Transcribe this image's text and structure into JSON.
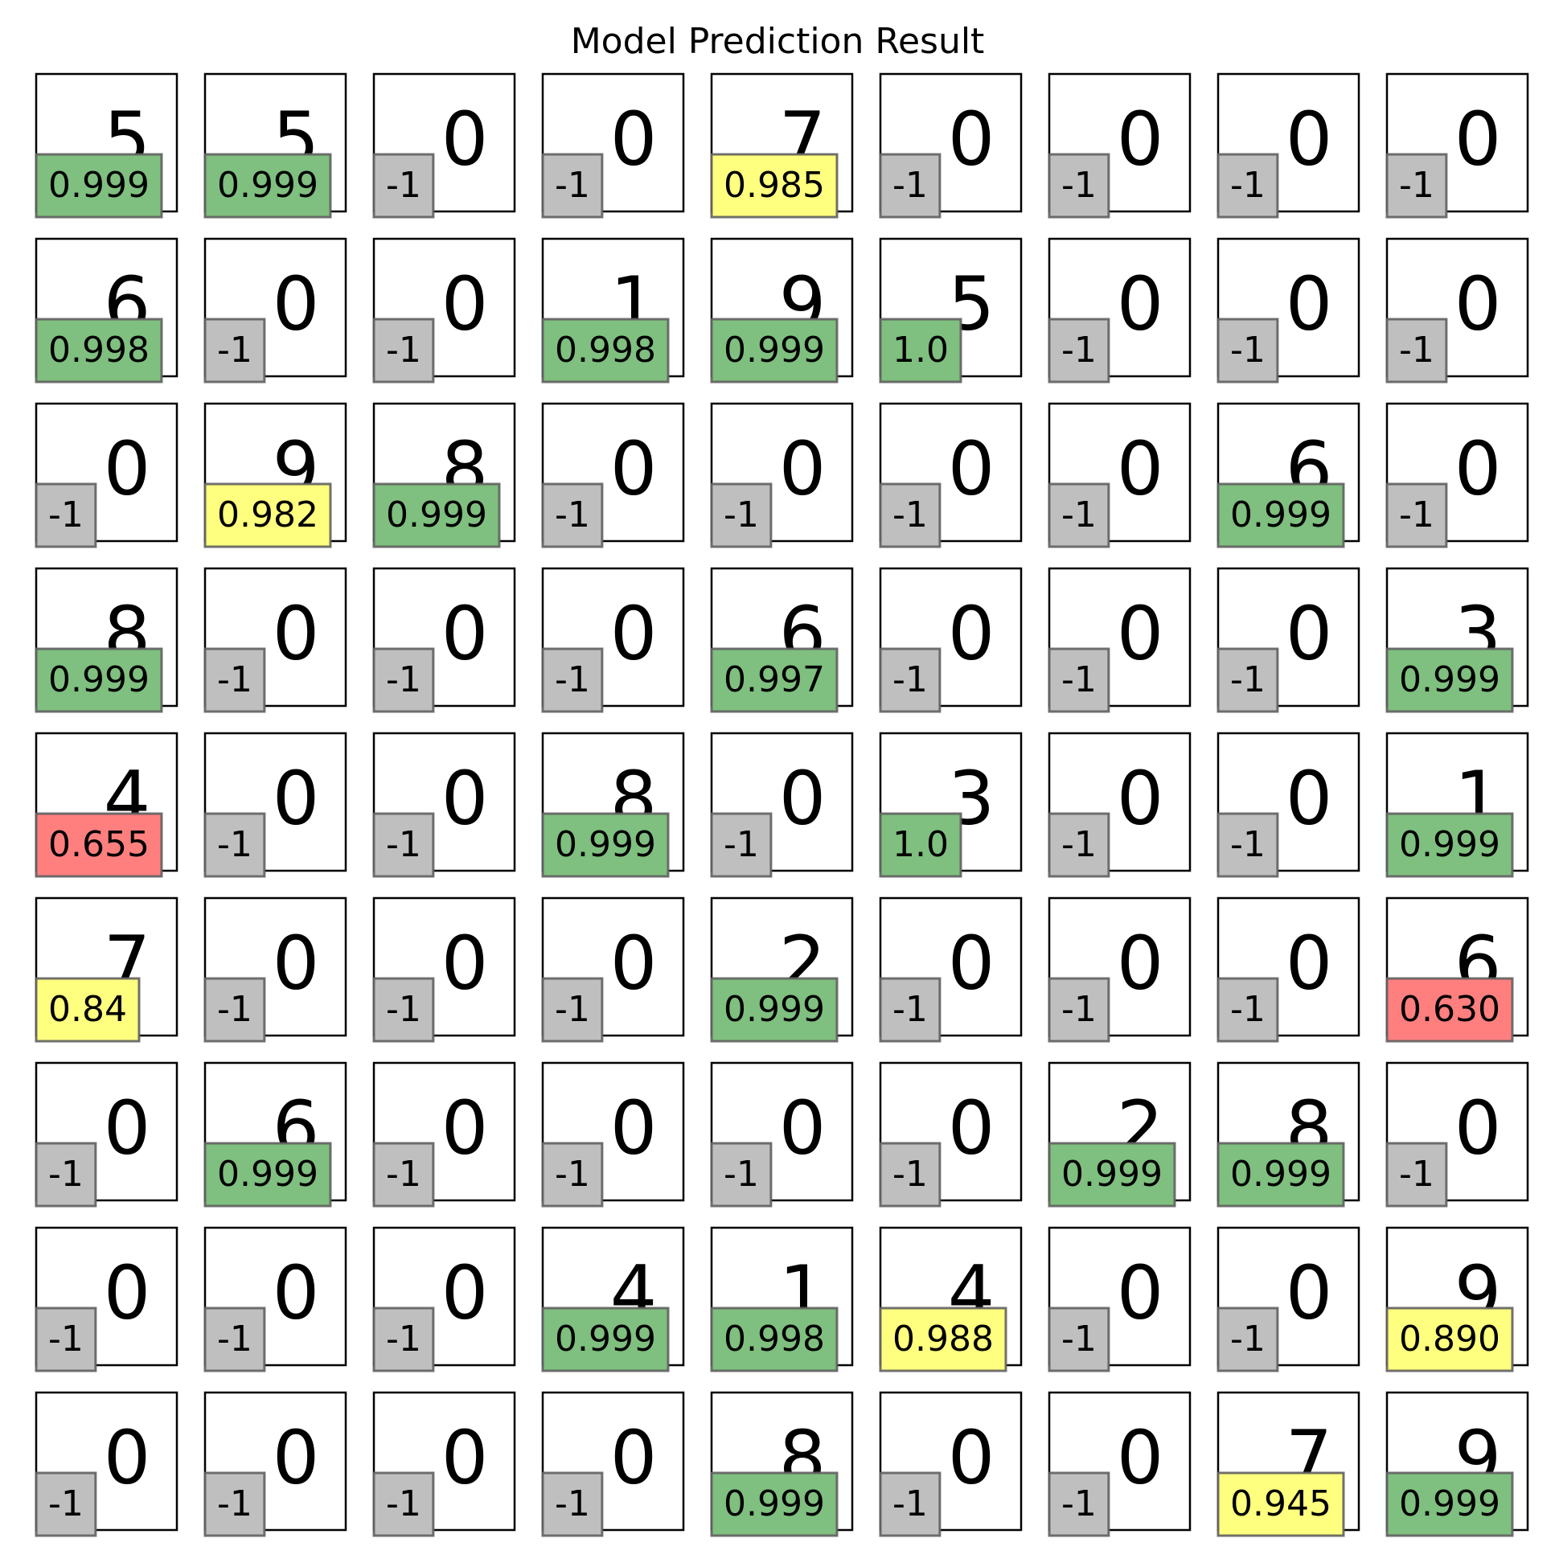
{
  "chart_data": {
    "type": "table",
    "title": "Model Prediction Result",
    "rows": 9,
    "cols": 9,
    "cells": [
      [
        {
          "pred": "5",
          "conf": "0.999",
          "level": "high"
        },
        {
          "pred": "5",
          "conf": "0.999",
          "level": "high"
        },
        {
          "pred": "0",
          "conf": "-1",
          "level": "none"
        },
        {
          "pred": "0",
          "conf": "-1",
          "level": "none"
        },
        {
          "pred": "7",
          "conf": "0.985",
          "level": "medium"
        },
        {
          "pred": "0",
          "conf": "-1",
          "level": "none"
        },
        {
          "pred": "0",
          "conf": "-1",
          "level": "none"
        },
        {
          "pred": "0",
          "conf": "-1",
          "level": "none"
        },
        {
          "pred": "0",
          "conf": "-1",
          "level": "none"
        }
      ],
      [
        {
          "pred": "6",
          "conf": "0.998",
          "level": "high"
        },
        {
          "pred": "0",
          "conf": "-1",
          "level": "none"
        },
        {
          "pred": "0",
          "conf": "-1",
          "level": "none"
        },
        {
          "pred": "1",
          "conf": "0.998",
          "level": "high"
        },
        {
          "pred": "9",
          "conf": "0.999",
          "level": "high"
        },
        {
          "pred": "5",
          "conf": "1.0",
          "level": "high"
        },
        {
          "pred": "0",
          "conf": "-1",
          "level": "none"
        },
        {
          "pred": "0",
          "conf": "-1",
          "level": "none"
        },
        {
          "pred": "0",
          "conf": "-1",
          "level": "none"
        }
      ],
      [
        {
          "pred": "0",
          "conf": "-1",
          "level": "none"
        },
        {
          "pred": "9",
          "conf": "0.982",
          "level": "medium"
        },
        {
          "pred": "8",
          "conf": "0.999",
          "level": "high"
        },
        {
          "pred": "0",
          "conf": "-1",
          "level": "none"
        },
        {
          "pred": "0",
          "conf": "-1",
          "level": "none"
        },
        {
          "pred": "0",
          "conf": "-1",
          "level": "none"
        },
        {
          "pred": "0",
          "conf": "-1",
          "level": "none"
        },
        {
          "pred": "6",
          "conf": "0.999",
          "level": "high"
        },
        {
          "pred": "0",
          "conf": "-1",
          "level": "none"
        }
      ],
      [
        {
          "pred": "8",
          "conf": "0.999",
          "level": "high"
        },
        {
          "pred": "0",
          "conf": "-1",
          "level": "none"
        },
        {
          "pred": "0",
          "conf": "-1",
          "level": "none"
        },
        {
          "pred": "0",
          "conf": "-1",
          "level": "none"
        },
        {
          "pred": "6",
          "conf": "0.997",
          "level": "high"
        },
        {
          "pred": "0",
          "conf": "-1",
          "level": "none"
        },
        {
          "pred": "0",
          "conf": "-1",
          "level": "none"
        },
        {
          "pred": "0",
          "conf": "-1",
          "level": "none"
        },
        {
          "pred": "3",
          "conf": "0.999",
          "level": "high"
        }
      ],
      [
        {
          "pred": "4",
          "conf": "0.655",
          "level": "low"
        },
        {
          "pred": "0",
          "conf": "-1",
          "level": "none"
        },
        {
          "pred": "0",
          "conf": "-1",
          "level": "none"
        },
        {
          "pred": "8",
          "conf": "0.999",
          "level": "high"
        },
        {
          "pred": "0",
          "conf": "-1",
          "level": "none"
        },
        {
          "pred": "3",
          "conf": "1.0",
          "level": "high"
        },
        {
          "pred": "0",
          "conf": "-1",
          "level": "none"
        },
        {
          "pred": "0",
          "conf": "-1",
          "level": "none"
        },
        {
          "pred": "1",
          "conf": "0.999",
          "level": "high"
        }
      ],
      [
        {
          "pred": "7",
          "conf": "0.84",
          "level": "medium"
        },
        {
          "pred": "0",
          "conf": "-1",
          "level": "none"
        },
        {
          "pred": "0",
          "conf": "-1",
          "level": "none"
        },
        {
          "pred": "0",
          "conf": "-1",
          "level": "none"
        },
        {
          "pred": "2",
          "conf": "0.999",
          "level": "high"
        },
        {
          "pred": "0",
          "conf": "-1",
          "level": "none"
        },
        {
          "pred": "0",
          "conf": "-1",
          "level": "none"
        },
        {
          "pred": "0",
          "conf": "-1",
          "level": "none"
        },
        {
          "pred": "6",
          "conf": "0.630",
          "level": "low"
        }
      ],
      [
        {
          "pred": "0",
          "conf": "-1",
          "level": "none"
        },
        {
          "pred": "6",
          "conf": "0.999",
          "level": "high"
        },
        {
          "pred": "0",
          "conf": "-1",
          "level": "none"
        },
        {
          "pred": "0",
          "conf": "-1",
          "level": "none"
        },
        {
          "pred": "0",
          "conf": "-1",
          "level": "none"
        },
        {
          "pred": "0",
          "conf": "-1",
          "level": "none"
        },
        {
          "pred": "2",
          "conf": "0.999",
          "level": "high"
        },
        {
          "pred": "8",
          "conf": "0.999",
          "level": "high"
        },
        {
          "pred": "0",
          "conf": "-1",
          "level": "none"
        }
      ],
      [
        {
          "pred": "0",
          "conf": "-1",
          "level": "none"
        },
        {
          "pred": "0",
          "conf": "-1",
          "level": "none"
        },
        {
          "pred": "0",
          "conf": "-1",
          "level": "none"
        },
        {
          "pred": "4",
          "conf": "0.999",
          "level": "high"
        },
        {
          "pred": "1",
          "conf": "0.998",
          "level": "high"
        },
        {
          "pred": "4",
          "conf": "0.988",
          "level": "medium"
        },
        {
          "pred": "0",
          "conf": "-1",
          "level": "none"
        },
        {
          "pred": "0",
          "conf": "-1",
          "level": "none"
        },
        {
          "pred": "9",
          "conf": "0.890",
          "level": "medium"
        }
      ],
      [
        {
          "pred": "0",
          "conf": "-1",
          "level": "none"
        },
        {
          "pred": "0",
          "conf": "-1",
          "level": "none"
        },
        {
          "pred": "0",
          "conf": "-1",
          "level": "none"
        },
        {
          "pred": "0",
          "conf": "-1",
          "level": "none"
        },
        {
          "pred": "8",
          "conf": "0.999",
          "level": "high"
        },
        {
          "pred": "0",
          "conf": "-1",
          "level": "none"
        },
        {
          "pred": "0",
          "conf": "-1",
          "level": "none"
        },
        {
          "pred": "7",
          "conf": "0.945",
          "level": "medium"
        },
        {
          "pred": "9",
          "conf": "0.999",
          "level": "high"
        }
      ]
    ],
    "level_colors": {
      "high": "#7fbf7f",
      "medium": "#ffff7f",
      "low": "#ff7f7f",
      "none": "#bfbfbf"
    }
  }
}
